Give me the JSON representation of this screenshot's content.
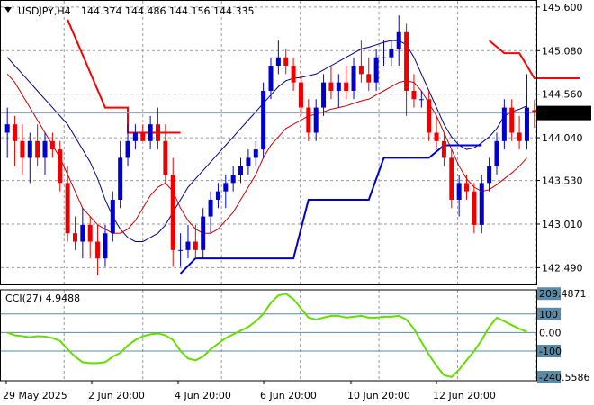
{
  "chart_data": [
    {
      "type": "candlestick",
      "title": "USDJPY,H4",
      "ohlc_label": "144.374 144.486 144.156 144.335",
      "current_price": 144.335,
      "current_price_label": "144.335",
      "y_tick_labels": [
        "145.600",
        "145.080",
        "144.560",
        "144.040",
        "143.530",
        "143.010",
        "142.490"
      ],
      "y_ticks": [
        145.6,
        145.08,
        144.56,
        144.04,
        143.53,
        143.01,
        142.49
      ],
      "ylim": [
        142.29,
        145.62
      ],
      "x_tick_labels": [
        "29 May 2025",
        "2 Jun 20:00",
        "4 Jun 20:00",
        "6 Jun 20:00",
        "10 Jun 20:00",
        "12 Jun 20:00"
      ],
      "grid": true,
      "candles": [
        [
          144.1,
          144.4,
          143.8,
          144.2
        ],
        [
          144.2,
          144.3,
          143.7,
          144.0
        ],
        [
          144.0,
          144.2,
          143.6,
          143.8
        ],
        [
          143.8,
          144.1,
          143.5,
          144.0
        ],
        [
          144.0,
          144.2,
          143.7,
          143.8
        ],
        [
          143.8,
          144.1,
          143.6,
          144.0
        ],
        [
          144.0,
          144.1,
          143.8,
          143.9
        ],
        [
          143.9,
          144.0,
          143.4,
          143.5
        ],
        [
          143.5,
          143.7,
          142.8,
          142.9
        ],
        [
          142.9,
          143.1,
          142.7,
          142.8
        ],
        [
          142.8,
          143.2,
          142.6,
          143.0
        ],
        [
          143.0,
          143.1,
          142.6,
          142.8
        ],
        [
          142.8,
          143.0,
          142.4,
          142.6
        ],
        [
          142.6,
          143.0,
          142.5,
          142.9
        ],
        [
          142.9,
          143.4,
          142.8,
          143.3
        ],
        [
          143.3,
          144.0,
          143.2,
          143.8
        ],
        [
          143.8,
          144.2,
          143.7,
          144.0
        ],
        [
          144.0,
          144.2,
          143.9,
          144.1
        ],
        [
          144.1,
          144.2,
          144.0,
          144.0
        ],
        [
          144.0,
          144.3,
          143.9,
          144.2
        ],
        [
          144.2,
          144.4,
          143.9,
          144.0
        ],
        [
          144.0,
          144.2,
          143.5,
          143.6
        ],
        [
          143.6,
          143.8,
          142.5,
          142.7
        ],
        [
          142.7,
          142.9,
          142.5,
          142.7
        ],
        [
          142.7,
          143.0,
          142.6,
          142.8
        ],
        [
          142.8,
          143.0,
          142.6,
          142.7
        ],
        [
          142.7,
          143.2,
          142.6,
          143.1
        ],
        [
          143.1,
          143.4,
          142.9,
          143.3
        ],
        [
          143.3,
          143.5,
          143.2,
          143.4
        ],
        [
          143.4,
          143.6,
          143.2,
          143.5
        ],
        [
          143.5,
          143.7,
          143.4,
          143.6
        ],
        [
          143.6,
          143.8,
          143.5,
          143.7
        ],
        [
          143.7,
          143.9,
          143.6,
          143.8
        ],
        [
          143.8,
          144.0,
          143.7,
          143.9
        ],
        [
          143.9,
          144.7,
          143.8,
          144.6
        ],
        [
          144.6,
          145.0,
          144.5,
          144.9
        ],
        [
          144.9,
          145.2,
          144.8,
          145.0
        ],
        [
          145.0,
          145.1,
          144.8,
          144.9
        ],
        [
          144.9,
          145.0,
          144.6,
          144.7
        ],
        [
          144.7,
          144.8,
          144.3,
          144.4
        ],
        [
          144.4,
          144.5,
          144.0,
          144.1
        ],
        [
          144.1,
          144.5,
          144.0,
          144.4
        ],
        [
          144.4,
          144.8,
          144.3,
          144.7
        ],
        [
          144.7,
          144.9,
          144.5,
          144.6
        ],
        [
          144.6,
          144.8,
          144.4,
          144.7
        ],
        [
          144.7,
          144.9,
          144.5,
          144.6
        ],
        [
          144.6,
          145.0,
          144.5,
          144.9
        ],
        [
          144.9,
          145.2,
          144.7,
          144.8
        ],
        [
          144.8,
          145.0,
          144.6,
          144.7
        ],
        [
          144.7,
          145.1,
          144.6,
          145.0
        ],
        [
          145.0,
          145.2,
          144.9,
          145.0
        ],
        [
          145.0,
          145.2,
          144.9,
          145.1
        ],
        [
          145.1,
          145.5,
          144.9,
          145.3
        ],
        [
          145.3,
          145.4,
          144.3,
          144.6
        ],
        [
          144.6,
          144.8,
          144.4,
          144.5
        ],
        [
          144.5,
          144.6,
          144.4,
          144.5
        ],
        [
          144.5,
          144.6,
          144.0,
          144.1
        ],
        [
          144.1,
          144.3,
          143.9,
          144.0
        ],
        [
          144.0,
          144.1,
          143.7,
          143.8
        ],
        [
          143.8,
          143.9,
          143.2,
          143.3
        ],
        [
          143.3,
          143.6,
          143.1,
          143.5
        ],
        [
          143.5,
          143.6,
          143.3,
          143.4
        ],
        [
          143.4,
          143.5,
          142.9,
          143.0
        ],
        [
          143.0,
          143.6,
          142.9,
          143.5
        ],
        [
          143.5,
          143.8,
          143.4,
          143.7
        ],
        [
          143.7,
          144.1,
          143.6,
          144.0
        ],
        [
          144.0,
          144.5,
          143.9,
          144.4
        ],
        [
          144.4,
          144.5,
          144.0,
          144.1
        ],
        [
          144.1,
          144.3,
          143.9,
          144.0
        ],
        [
          144.0,
          144.8,
          143.9,
          144.4
        ],
        [
          144.37,
          144.49,
          144.16,
          144.34
        ]
      ],
      "overlays": [
        {
          "kind": "moving-average-1",
          "color": "#000080",
          "values": [
            145.0,
            144.9,
            144.8,
            144.7,
            144.6,
            144.5,
            144.4,
            144.3,
            144.2,
            144.05,
            143.9,
            143.75,
            143.55,
            143.3,
            143.1,
            142.95,
            142.85,
            142.8,
            142.8,
            142.85,
            142.9,
            143.0,
            143.15,
            143.3,
            143.45,
            143.55,
            143.65,
            143.75,
            143.85,
            143.95,
            144.05,
            144.15,
            144.25,
            144.35,
            144.45,
            144.55,
            144.65,
            144.72,
            144.75,
            144.76,
            144.78,
            144.8,
            144.85,
            144.9,
            144.95,
            145.0,
            145.05,
            145.1,
            145.12,
            145.15,
            145.18,
            145.2,
            145.2,
            145.15,
            145.0,
            144.8,
            144.6,
            144.4,
            144.2,
            144.05,
            143.95,
            143.9,
            143.92,
            143.98,
            144.05,
            144.15,
            144.3,
            144.35,
            144.38,
            144.42
          ]
        },
        {
          "kind": "moving-average-2",
          "color": "#cc0000",
          "values": [
            144.8,
            144.7,
            144.55,
            144.4,
            144.25,
            144.1,
            143.95,
            143.8,
            143.6,
            143.4,
            143.2,
            143.1,
            143.0,
            142.95,
            142.9,
            142.9,
            142.95,
            143.05,
            143.2,
            143.35,
            143.45,
            143.5,
            143.4,
            143.2,
            143.05,
            142.95,
            142.9,
            142.9,
            142.95,
            143.05,
            143.15,
            143.3,
            143.45,
            143.6,
            143.8,
            143.95,
            144.05,
            144.15,
            144.2,
            144.25,
            144.3,
            144.32,
            144.35,
            144.38,
            144.4,
            144.42,
            144.45,
            144.48,
            144.5,
            144.55,
            144.6,
            144.65,
            144.7,
            144.72,
            144.7,
            144.6,
            144.45,
            144.3,
            144.1,
            143.9,
            143.7,
            143.55,
            143.45,
            143.4,
            143.42,
            143.48,
            143.55,
            143.62,
            143.7,
            143.8
          ]
        },
        {
          "kind": "step-upper",
          "color": "#ff0000",
          "segments": [
            [
              [
                8,
                145.45
              ],
              [
                13,
                144.4
              ],
              [
                16,
                144.4
              ],
              [
                16,
                144.1
              ],
              [
                23,
                144.1
              ]
            ],
            [
              [
                64,
                145.2
              ],
              [
                66,
                145.05
              ],
              [
                68,
                145.05
              ],
              [
                70,
                144.75
              ],
              [
                76,
                144.75
              ]
            ]
          ]
        },
        {
          "kind": "step-lower",
          "color": "#0000cc",
          "segments": [
            [
              [
                23,
                142.42
              ],
              [
                25,
                142.6
              ],
              [
                38,
                142.6
              ],
              [
                40,
                143.3
              ],
              [
                48,
                143.3
              ],
              [
                50,
                143.8
              ],
              [
                56,
                143.8
              ],
              [
                58,
                143.95
              ],
              [
                63,
                143.95
              ]
            ]
          ]
        }
      ]
    },
    {
      "type": "line",
      "title": "CCI(27) 4.9488",
      "y_tick_labels": [
        "209.4871",
        "100",
        "0.00",
        "-100",
        "-240.5586"
      ],
      "y_ticks": [
        209.4871,
        100,
        0,
        -100,
        -240.5586
      ],
      "ylim": [
        -260,
        230
      ],
      "levels": [
        100,
        0,
        -100
      ],
      "series": [
        {
          "color": "#66dd00",
          "values": [
            0,
            -15,
            -20,
            -25,
            -20,
            -22,
            -30,
            -45,
            -90,
            -130,
            -160,
            -165,
            -165,
            -160,
            -130,
            -110,
            -70,
            -40,
            -20,
            -10,
            -5,
            -15,
            -40,
            -100,
            -140,
            -150,
            -130,
            -90,
            -60,
            -30,
            -10,
            10,
            30,
            60,
            100,
            160,
            200,
            209,
            180,
            130,
            80,
            70,
            80,
            90,
            90,
            80,
            85,
            90,
            80,
            80,
            85,
            85,
            90,
            70,
            20,
            -50,
            -120,
            -180,
            -230,
            -240,
            -200,
            -150,
            -100,
            -40,
            30,
            80,
            60,
            40,
            20,
            5
          ]
        }
      ]
    }
  ]
}
